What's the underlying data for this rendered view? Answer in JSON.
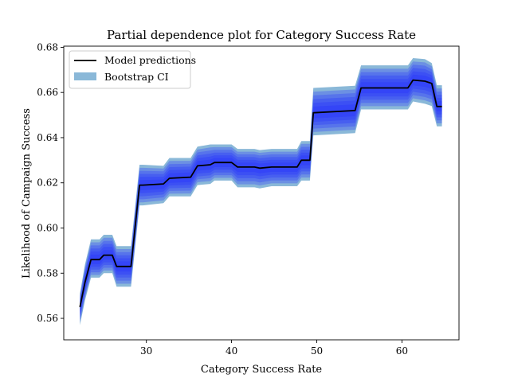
{
  "chart_data": {
    "type": "line",
    "title": "Partial dependence plot for Category Success Rate",
    "xlabel": "Category Success Rate",
    "ylabel": "Likelihood of Campaign Success",
    "xlim": [
      20.3,
      66.7
    ],
    "ylim": [
      0.5505,
      0.6805
    ],
    "xticks": [
      30,
      40,
      50,
      60
    ],
    "yticks": [
      0.56,
      0.58,
      0.6,
      0.62,
      0.64,
      0.66,
      0.68
    ],
    "ytick_labels": [
      "0.56",
      "0.58",
      "0.60",
      "0.62",
      "0.64",
      "0.66",
      "0.68"
    ],
    "grid": false,
    "legend": {
      "placement": "top-left",
      "entries": [
        {
          "label": "Model predictions",
          "style": "line",
          "color": "#000000"
        },
        {
          "label": "Bootstrap CI",
          "style": "patch",
          "color": "#8ab8d8"
        }
      ]
    },
    "series": [
      {
        "name": "Model predictions",
        "x": [
          22.2,
          22.8,
          23.5,
          24.5,
          25.0,
          26.0,
          26.5,
          27.7,
          28.2,
          29.2,
          29.6,
          32.0,
          32.7,
          35.2,
          36.0,
          37.5,
          38.0,
          40.0,
          40.7,
          42.7,
          43.3,
          44.7,
          45.0,
          47.7,
          48.2,
          49.2,
          49.6,
          54.5,
          55.2,
          60.7,
          61.3,
          62.7,
          63.5,
          64.1,
          64.7
        ],
        "y": [
          0.565,
          0.576,
          0.586,
          0.586,
          0.588,
          0.588,
          0.583,
          0.583,
          0.583,
          0.619,
          0.619,
          0.6195,
          0.622,
          0.6225,
          0.6275,
          0.628,
          0.629,
          0.629,
          0.627,
          0.627,
          0.6265,
          0.627,
          0.627,
          0.627,
          0.63,
          0.63,
          0.651,
          0.652,
          0.662,
          0.662,
          0.6655,
          0.665,
          0.664,
          0.6538,
          0.6538
        ]
      },
      {
        "name": "Bootstrap CI",
        "color": "#8ab8d8",
        "inner_color": "#1f2cff",
        "x": [
          22.2,
          22.8,
          23.5,
          24.5,
          25.0,
          26.0,
          26.5,
          27.7,
          28.2,
          29.2,
          29.6,
          32.0,
          32.7,
          35.2,
          36.0,
          37.5,
          38.0,
          40.0,
          40.7,
          42.7,
          43.3,
          44.7,
          45.0,
          47.7,
          48.2,
          49.2,
          49.6,
          54.5,
          55.2,
          60.7,
          61.3,
          62.7,
          63.5,
          64.1,
          64.7
        ],
        "lower": [
          0.557,
          0.568,
          0.578,
          0.578,
          0.58,
          0.58,
          0.574,
          0.574,
          0.574,
          0.61,
          0.61,
          0.611,
          0.614,
          0.614,
          0.619,
          0.6195,
          0.621,
          0.621,
          0.618,
          0.618,
          0.6175,
          0.6185,
          0.6185,
          0.6185,
          0.621,
          0.621,
          0.641,
          0.642,
          0.6525,
          0.6525,
          0.656,
          0.655,
          0.654,
          0.645,
          0.645
        ],
        "upper": [
          0.571,
          0.584,
          0.595,
          0.595,
          0.597,
          0.597,
          0.592,
          0.592,
          0.592,
          0.628,
          0.628,
          0.6275,
          0.631,
          0.631,
          0.636,
          0.637,
          0.637,
          0.637,
          0.635,
          0.635,
          0.6345,
          0.635,
          0.635,
          0.635,
          0.6385,
          0.6385,
          0.662,
          0.663,
          0.672,
          0.672,
          0.6752,
          0.6748,
          0.673,
          0.6632,
          0.6632
        ]
      }
    ]
  }
}
